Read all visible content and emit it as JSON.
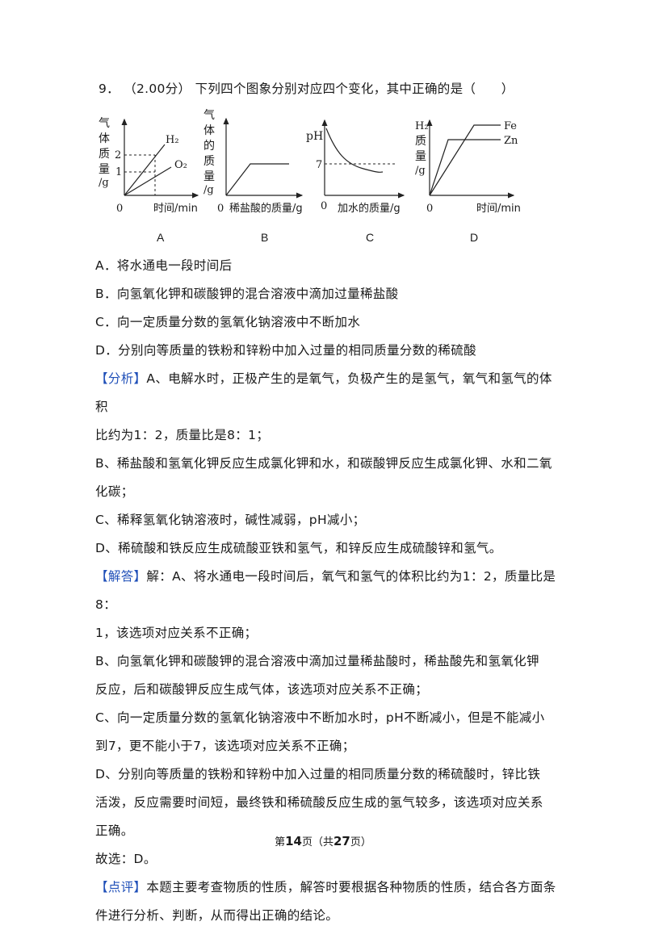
{
  "question": {
    "number": "9．",
    "score": "（2.00分）",
    "stem": "下列四个图象分别对应四个变化，其中正确的是（　　）"
  },
  "figures": [
    {
      "label": "A",
      "ylabel": [
        "气",
        "体",
        "质",
        "量",
        "/g"
      ],
      "xlabel": "时间/min",
      "origin": "0",
      "ticks": [
        "2",
        "1"
      ],
      "series": [
        "H₂",
        "O₂"
      ]
    },
    {
      "label": "B",
      "ylabel": [
        "气",
        "体",
        "的",
        "质",
        "量",
        "/g"
      ],
      "xlabel": "稀盐酸的质量/g",
      "origin": "0"
    },
    {
      "label": "C",
      "ylabel": [
        "pH"
      ],
      "xlabel": "加水的质量/g",
      "origin": "0",
      "ticks": [
        "7"
      ]
    },
    {
      "label": "D",
      "ylabel": [
        "H₂",
        "质",
        "量",
        "/g"
      ],
      "xlabel": "时间/min",
      "origin": "0",
      "series": [
        "Fe",
        "Zn"
      ]
    }
  ],
  "options": {
    "A": "A．将水通电一段时间后",
    "B": "B．向氢氧化钾和碳酸钾的混合溶液中滴加过量稀盐酸",
    "C": "C．向一定质量分数的氢氧化钠溶液中不断加水",
    "D": "D．分别向等质量的铁粉和锌粉中加入过量的相同质量分数的稀硫酸"
  },
  "analysis": {
    "tag": "【分析】",
    "lines": [
      "A、电解水时，正极产生的是氧气，负极产生的是氢气，氧气和氢气的体积",
      "比约为1：2，质量比是8：1；",
      "B、稀盐酸和氢氧化钾反应生成氯化钾和水，和碳酸钾反应生成氯化钾、水和二氧",
      "化碳；",
      "C、稀释氢氧化钠溶液时，碱性减弱，pH减小；",
      "D、稀硫酸和铁反应生成硫酸亚铁和氢气，和锌反应生成硫酸锌和氢气。"
    ]
  },
  "solution": {
    "tag": "【解答】",
    "lines": [
      "解：A、将水通电一段时间后，氧气和氢气的体积比约为1：2，质量比是8：",
      "1，该选项对应关系不正确；",
      "B、向氢氧化钾和碳酸钾的混合溶液中滴加过量稀盐酸时，稀盐酸先和氢氧化钾",
      "反应，后和碳酸钾反应生成气体，该选项对应关系不正确；",
      "C、向一定质量分数的氢氧化钠溶液中不断加水时，pH不断减小，但是不能减小",
      "到7，更不能小于7，该选项对应关系不正确；",
      "D、分别向等质量的铁粉和锌粉中加入过量的相同质量分数的稀硫酸时，锌比铁",
      "活泼，反应需要时间短，最终铁和稀硫酸反应生成的氢气较多，该选项对应关系",
      "正确。",
      "故选：D。"
    ]
  },
  "comment": {
    "tag": "【点评】",
    "lines": [
      "本题主要考查物质的性质，解答时要根据各种物质的性质，结合各方面条",
      "件进行分析、判断，从而得出正确的结论。"
    ]
  },
  "footer": {
    "prefix": "第",
    "page": "14",
    "mid": "页（共",
    "total": "27",
    "suffix": "页）"
  }
}
